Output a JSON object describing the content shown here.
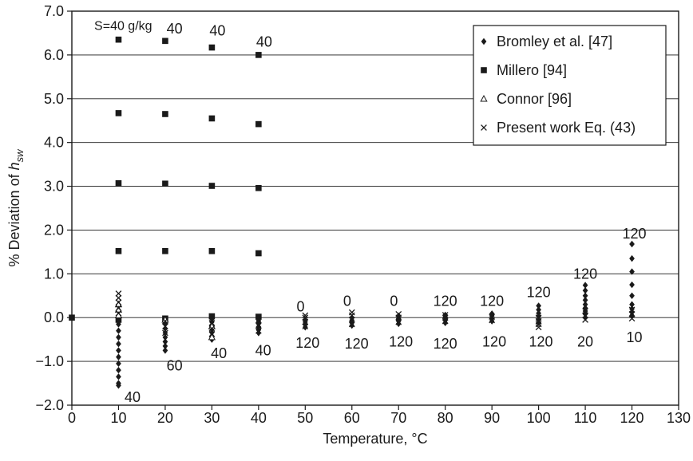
{
  "chart_data": {
    "type": "scatter",
    "title": "",
    "xlabel": "Temperature, °C",
    "ylabel_main": "% Deviation of ",
    "ylabel_var": "h",
    "ylabel_sub": "sw",
    "xlim": [
      0,
      130
    ],
    "ylim": [
      -2.0,
      7.0
    ],
    "x_ticks": [
      0,
      10,
      20,
      30,
      40,
      50,
      60,
      70,
      80,
      90,
      100,
      110,
      120,
      130
    ],
    "y_ticks": [
      -2.0,
      -1.0,
      0.0,
      1.0,
      2.0,
      3.0,
      4.0,
      5.0,
      6.0,
      7.0
    ],
    "x_tick_labels": [
      "0",
      "10",
      "20",
      "30",
      "40",
      "50",
      "60",
      "70",
      "80",
      "90",
      "100",
      "110",
      "120",
      "130"
    ],
    "y_tick_labels": [
      "−2.0",
      "−1.0",
      "0.0",
      "1.0",
      "2.0",
      "3.0",
      "4.0",
      "5.0",
      "6.0",
      "7.0"
    ],
    "grid": "horizontal",
    "legend_position": "top-right",
    "series": [
      {
        "name": "Bromley et al. [47]",
        "marker": "diamond",
        "points": [
          [
            10,
            -1.55
          ],
          [
            10,
            -1.5
          ],
          [
            10,
            -1.35
          ],
          [
            10,
            -1.2
          ],
          [
            10,
            -1.05
          ],
          [
            10,
            -0.9
          ],
          [
            10,
            -0.75
          ],
          [
            10,
            -0.6
          ],
          [
            10,
            -0.45
          ],
          [
            10,
            -0.3
          ],
          [
            10,
            -0.15
          ],
          [
            10,
            0.0
          ],
          [
            20,
            -0.75
          ],
          [
            20,
            -0.65
          ],
          [
            20,
            -0.55
          ],
          [
            20,
            -0.45
          ],
          [
            20,
            -0.35
          ],
          [
            20,
            -0.25
          ],
          [
            20,
            -0.15
          ],
          [
            20,
            -0.05
          ],
          [
            30,
            -0.5
          ],
          [
            30,
            -0.42
          ],
          [
            30,
            -0.34
          ],
          [
            30,
            -0.26
          ],
          [
            30,
            -0.18
          ],
          [
            30,
            -0.1
          ],
          [
            30,
            -0.03
          ],
          [
            40,
            -0.35
          ],
          [
            40,
            -0.28
          ],
          [
            40,
            -0.21
          ],
          [
            40,
            -0.14
          ],
          [
            40,
            -0.07
          ],
          [
            40,
            -0.01
          ],
          [
            50,
            -0.22
          ],
          [
            50,
            -0.16
          ],
          [
            50,
            -0.1
          ],
          [
            50,
            -0.05
          ],
          [
            60,
            -0.18
          ],
          [
            60,
            -0.12
          ],
          [
            60,
            -0.06
          ],
          [
            60,
            0.0
          ],
          [
            70,
            -0.14
          ],
          [
            70,
            -0.08
          ],
          [
            70,
            -0.02
          ],
          [
            70,
            0.04
          ],
          [
            80,
            -0.12
          ],
          [
            80,
            -0.06
          ],
          [
            80,
            0.0
          ],
          [
            80,
            0.06
          ],
          [
            90,
            -0.08
          ],
          [
            90,
            -0.02
          ],
          [
            90,
            0.04
          ],
          [
            90,
            0.09
          ],
          [
            100,
            -0.12
          ],
          [
            100,
            -0.05
          ],
          [
            100,
            0.03
          ],
          [
            100,
            0.1
          ],
          [
            100,
            0.18
          ],
          [
            100,
            0.27
          ],
          [
            110,
            0.0
          ],
          [
            110,
            0.08
          ],
          [
            110,
            0.15
          ],
          [
            110,
            0.22
          ],
          [
            110,
            0.3
          ],
          [
            110,
            0.4
          ],
          [
            110,
            0.5
          ],
          [
            110,
            0.62
          ],
          [
            110,
            0.74
          ],
          [
            120,
            0.05
          ],
          [
            120,
            0.12
          ],
          [
            120,
            0.2
          ],
          [
            120,
            0.3
          ],
          [
            120,
            0.5
          ],
          [
            120,
            0.75
          ],
          [
            120,
            1.05
          ],
          [
            120,
            1.35
          ],
          [
            120,
            1.68
          ]
        ]
      },
      {
        "name": "Millero [94]",
        "marker": "square",
        "points": [
          [
            0,
            0.0
          ],
          [
            10,
            6.35
          ],
          [
            10,
            4.67
          ],
          [
            10,
            3.07
          ],
          [
            10,
            1.52
          ],
          [
            20,
            6.32
          ],
          [
            20,
            4.65
          ],
          [
            20,
            3.06
          ],
          [
            20,
            1.52
          ],
          [
            30,
            6.17
          ],
          [
            30,
            4.55
          ],
          [
            30,
            3.01
          ],
          [
            30,
            1.52
          ],
          [
            40,
            6.0
          ],
          [
            40,
            4.42
          ],
          [
            40,
            2.96
          ],
          [
            40,
            1.47
          ],
          [
            10,
            -0.05
          ],
          [
            20,
            -0.02
          ],
          [
            30,
            0.03
          ],
          [
            40,
            0.02
          ]
        ]
      },
      {
        "name": "Connor [96]",
        "marker": "triangle",
        "points": [
          [
            10,
            0.3
          ],
          [
            10,
            0.18
          ],
          [
            10,
            0.05
          ],
          [
            20,
            -0.05
          ],
          [
            30,
            -0.2
          ],
          [
            30,
            -0.45
          ]
        ]
      },
      {
        "name": "Present work Eq. (43)",
        "marker": "cross",
        "points": [
          [
            10,
            0.55
          ],
          [
            10,
            0.45
          ],
          [
            10,
            0.35
          ],
          [
            10,
            0.22
          ],
          [
            10,
            0.1
          ],
          [
            20,
            -0.35
          ],
          [
            20,
            -0.2
          ],
          [
            20,
            -0.08
          ],
          [
            30,
            -0.38
          ],
          [
            30,
            -0.25
          ],
          [
            30,
            -0.12
          ],
          [
            40,
            -0.3
          ],
          [
            40,
            -0.18
          ],
          [
            40,
            -0.06
          ],
          [
            50,
            -0.2
          ],
          [
            50,
            -0.1
          ],
          [
            50,
            0.0
          ],
          [
            50,
            0.05
          ],
          [
            60,
            -0.15
          ],
          [
            60,
            -0.05
          ],
          [
            60,
            0.05
          ],
          [
            60,
            0.12
          ],
          [
            70,
            -0.1
          ],
          [
            70,
            0.0
          ],
          [
            70,
            0.08
          ],
          [
            80,
            -0.08
          ],
          [
            80,
            0.0
          ],
          [
            80,
            0.06
          ],
          [
            90,
            -0.06
          ],
          [
            90,
            0.02
          ],
          [
            100,
            -0.22
          ],
          [
            100,
            -0.15
          ],
          [
            100,
            -0.08
          ],
          [
            100,
            0.0
          ],
          [
            110,
            -0.05
          ],
          [
            110,
            0.05
          ],
          [
            110,
            0.15
          ],
          [
            120,
            -0.02
          ],
          [
            120,
            0.08
          ],
          [
            120,
            0.18
          ]
        ]
      }
    ],
    "annotations": [
      {
        "text": "S=40 g/kg",
        "x": 11,
        "y": 6.68,
        "anchor": "middle",
        "small": true
      },
      {
        "text": "40",
        "x": 22,
        "y": 6.6,
        "anchor": "middle"
      },
      {
        "text": "40",
        "x": 31.2,
        "y": 6.55,
        "anchor": "middle"
      },
      {
        "text": "40",
        "x": 41.2,
        "y": 6.3,
        "anchor": "middle"
      },
      {
        "text": "40",
        "x": 13,
        "y": -1.82,
        "anchor": "middle"
      },
      {
        "text": "60",
        "x": 22,
        "y": -1.1,
        "anchor": "middle"
      },
      {
        "text": "40",
        "x": 31.5,
        "y": -0.82,
        "anchor": "middle"
      },
      {
        "text": "40",
        "x": 41,
        "y": -0.75,
        "anchor": "middle"
      },
      {
        "text": "0",
        "x": 49,
        "y": 0.25,
        "anchor": "middle"
      },
      {
        "text": "0",
        "x": 59,
        "y": 0.38,
        "anchor": "middle"
      },
      {
        "text": "0",
        "x": 69,
        "y": 0.38,
        "anchor": "middle"
      },
      {
        "text": "120",
        "x": 50.5,
        "y": -0.58,
        "anchor": "middle"
      },
      {
        "text": "120",
        "x": 61,
        "y": -0.6,
        "anchor": "middle"
      },
      {
        "text": "120",
        "x": 70.5,
        "y": -0.55,
        "anchor": "middle"
      },
      {
        "text": "120",
        "x": 80,
        "y": 0.38,
        "anchor": "middle"
      },
      {
        "text": "120",
        "x": 80,
        "y": -0.6,
        "anchor": "middle"
      },
      {
        "text": "120",
        "x": 90,
        "y": 0.38,
        "anchor": "middle"
      },
      {
        "text": "120",
        "x": 90.5,
        "y": -0.55,
        "anchor": "middle"
      },
      {
        "text": "120",
        "x": 100,
        "y": 0.58,
        "anchor": "middle"
      },
      {
        "text": "120",
        "x": 100.5,
        "y": -0.55,
        "anchor": "middle"
      },
      {
        "text": "120",
        "x": 110,
        "y": 1.0,
        "anchor": "middle"
      },
      {
        "text": "20",
        "x": 110,
        "y": -0.55,
        "anchor": "middle"
      },
      {
        "text": "120",
        "x": 120.5,
        "y": 1.92,
        "anchor": "middle"
      },
      {
        "text": "10",
        "x": 120.5,
        "y": -0.45,
        "anchor": "middle"
      }
    ]
  }
}
